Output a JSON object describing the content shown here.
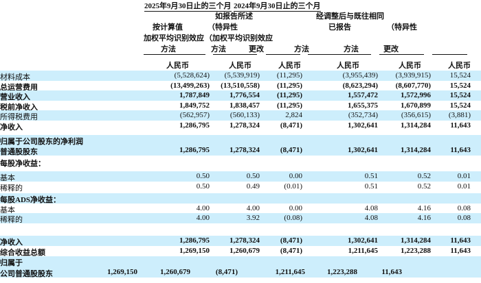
{
  "header": {
    "period_2025": "2025年9月30日止的三个月",
    "period_2024": "2024年9月30日止的三个月",
    "as_reported": "如报告所述",
    "adjusted": "经调整后与既往相同",
    "col1_l1": "按计算值",
    "col1_l2": "加权平均识别效应",
    "col1_l3": "方法",
    "col2_l1": "（特异性",
    "col2_l2": "（加权平均识别效应",
    "col2_l3": "方法",
    "col2_change": "更改",
    "col3": "方法",
    "col4_l1": "已报告",
    "col4_l2": "方法",
    "col5_l1": "（特异性",
    "col5_l2": "更改",
    "currency": "人民币"
  },
  "rows": [
    {
      "label": "材料成本",
      "values": [
        "(5,528,624)",
        "(5,539,919)",
        "(11,295)",
        "(3,955,439)",
        "(3,939,915)",
        "15,524"
      ],
      "bold": false,
      "blue": true
    },
    {
      "label": "总运营费用",
      "values": [
        "(13,499,263)",
        "(13,510,558)",
        "(11,295)",
        "(8,623,294)",
        "(8,607,770)",
        "15,524"
      ],
      "bold": true,
      "blue": false
    },
    {
      "label": "营业收入",
      "values": [
        "1,787,849",
        "1,776,554",
        "(11,295)",
        "1,557,472",
        "1,572,996",
        "15,524"
      ],
      "bold": true,
      "blue": true
    },
    {
      "label": "税前净收入",
      "values": [
        "1,849,752",
        "1,838,457",
        "(11,295)",
        "1,655,375",
        "1,670,899",
        "15,524"
      ],
      "bold": true,
      "blue": false
    },
    {
      "label": "所得税费用",
      "values": [
        "(562,957)",
        "(560,133)",
        "2,824",
        "(352,734)",
        "(356,615)",
        "(3,881)"
      ],
      "bold": false,
      "blue": true
    },
    {
      "label": "净收入",
      "values": [
        "1,286,795",
        "1,278,324",
        "(8,471)",
        "1,302,641",
        "1,314,284",
        "11,643"
      ],
      "bold": true,
      "blue": false
    },
    {
      "label": "归属于公司股东的净利润",
      "values": [],
      "bold": true,
      "blue": true
    },
    {
      "label": "普通股股东",
      "values": [
        "1,286,795",
        "1,278,324",
        "(8,471)",
        "1,302,641",
        "1,314,284",
        "11,643"
      ],
      "bold": true,
      "blue": true
    },
    {
      "label": "每股净收益：",
      "values": [],
      "bold": true,
      "blue": false
    },
    {
      "label": "基本",
      "values": [
        "0.50",
        "0.50",
        "0.00",
        "0.51",
        "0.52",
        "0.01"
      ],
      "bold": false,
      "blue": true
    },
    {
      "label": "稀释的",
      "values": [
        "0.50",
        "0.49",
        "(0.01)",
        "0.51",
        "0.52",
        "0.01"
      ],
      "bold": false,
      "blue": false
    },
    {
      "label": "每股ADS净收益：",
      "values": [],
      "bold": true,
      "blue": true
    },
    {
      "label": "基本",
      "values": [
        "4.00",
        "4.00",
        "0.00",
        "4.08",
        "4.16",
        "0.08"
      ],
      "bold": false,
      "blue": false
    },
    {
      "label": "稀释的",
      "values": [
        "4.00",
        "3.92",
        "(0.08)",
        "4.08",
        "4.16",
        "0.08"
      ],
      "bold": false,
      "blue": true
    },
    {
      "label": "",
      "values": [],
      "bold": false,
      "blue": false
    },
    {
      "label": "净收入",
      "values": [
        "1,286,795",
        "1,278,324",
        "(8,471)",
        "1,302,641",
        "1,314,284",
        "11,643"
      ],
      "bold": true,
      "blue": true
    },
    {
      "label": "综合收益总额",
      "values": [
        "1,269,150",
        "1,260,679",
        "(8,471)",
        "1,211,645",
        "1,223,288",
        "11,643"
      ],
      "bold": true,
      "blue": false
    },
    {
      "label": "归属于",
      "values": [],
      "bold": true,
      "blue": true
    },
    {
      "label": "公司普通股股东",
      "values": [
        "1,269,150",
        "1,260,679",
        "(8,471)",
        "1,211,645",
        "1,223,288",
        "11,643"
      ],
      "bold": true,
      "blue": true,
      "shifted": true
    }
  ]
}
